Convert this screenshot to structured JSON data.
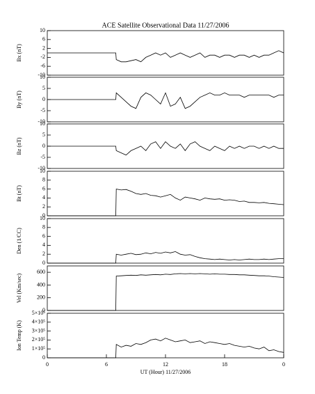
{
  "chart_data": [
    {
      "type": "line",
      "title": "ACE Satellite Observational Data   11/27/2006",
      "ylabel": "Bx (nT)",
      "color": "#000000",
      "x": [
        0,
        6.95,
        7,
        7.5,
        8,
        8.5,
        9,
        9.5,
        10,
        10.5,
        11,
        11.5,
        12,
        12.5,
        13,
        13.5,
        14,
        14.5,
        15,
        15.5,
        16,
        16.5,
        17,
        17.5,
        18,
        18.5,
        19,
        19.5,
        20,
        20.5,
        21,
        21.5,
        22,
        22.5,
        23,
        23.5,
        24
      ],
      "values": [
        0,
        0,
        -3,
        -4,
        -4,
        -3.5,
        -3,
        -4,
        -2,
        -1,
        0,
        -1,
        0,
        -2,
        -1,
        0,
        -1,
        -2,
        -1,
        0,
        -2,
        -1,
        -1,
        -2,
        -1,
        -1,
        -2,
        -1,
        -1,
        -2,
        -1,
        -2,
        -1,
        -1,
        0,
        1,
        0
      ],
      "xlim": [
        0,
        24
      ],
      "ylim": [
        -10,
        10
      ],
      "yticks": [
        -10,
        -6,
        -2,
        2,
        6,
        10
      ]
    },
    {
      "type": "line",
      "ylabel": "By (nT)",
      "color": "#000000",
      "x": [
        0,
        6.95,
        7,
        7.5,
        8,
        8.5,
        9,
        9.5,
        10,
        10.5,
        11,
        11.5,
        12,
        12.5,
        13,
        13.5,
        14,
        14.5,
        15,
        15.5,
        16,
        16.5,
        17,
        17.5,
        18,
        18.5,
        19,
        19.5,
        20,
        20.5,
        21,
        21.5,
        22,
        22.5,
        23,
        23.5,
        24
      ],
      "values": [
        0,
        0,
        3,
        1,
        -1,
        -3,
        -4,
        1,
        3,
        2,
        0,
        -2,
        3,
        -3,
        -2,
        1,
        -4,
        -3,
        -1,
        1,
        2,
        3,
        2,
        2,
        3,
        2,
        2,
        2,
        1,
        2,
        2,
        2,
        2,
        2,
        1,
        2,
        2
      ],
      "xlim": [
        0,
        24
      ],
      "ylim": [
        -10,
        10
      ],
      "yticks": [
        -10,
        -5,
        0,
        5,
        10
      ]
    },
    {
      "type": "line",
      "ylabel": "Bz (nT)",
      "color": "#000000",
      "x": [
        0,
        6.95,
        7,
        7.5,
        8,
        8.5,
        9,
        9.5,
        10,
        10.5,
        11,
        11.5,
        12,
        12.5,
        13,
        13.5,
        14,
        14.5,
        15,
        15.5,
        16,
        16.5,
        17,
        17.5,
        18,
        18.5,
        19,
        19.5,
        20,
        20.5,
        21,
        21.5,
        22,
        22.5,
        23,
        23.5,
        24
      ],
      "values": [
        0,
        0,
        -2,
        -3,
        -4,
        -2,
        -1,
        0,
        -2,
        1,
        2,
        -1,
        2,
        0,
        -1,
        1,
        -2,
        1,
        2,
        0,
        -1,
        -2,
        0,
        -1,
        -2,
        0,
        -1,
        0,
        -1,
        0,
        0,
        -1,
        0,
        -1,
        0,
        -1,
        -1
      ],
      "xlim": [
        0,
        24
      ],
      "ylim": [
        -10,
        10
      ],
      "yticks": [
        -10,
        -5,
        0,
        5,
        10
      ]
    },
    {
      "type": "line",
      "ylabel": "Bt (nT)",
      "color": "#000000",
      "x": [
        0,
        6.95,
        7,
        7.5,
        8,
        8.5,
        9,
        9.5,
        10,
        10.5,
        11,
        11.5,
        12,
        12.5,
        13,
        13.5,
        14,
        14.5,
        15,
        15.5,
        16,
        16.5,
        17,
        17.5,
        18,
        18.5,
        19,
        19.5,
        20,
        20.5,
        21,
        21.5,
        22,
        22.5,
        23,
        23.5,
        24
      ],
      "values": [
        0,
        0,
        6,
        5.8,
        5.9,
        5.5,
        5,
        4.8,
        5,
        4.6,
        4.5,
        4.2,
        4.5,
        4.8,
        4,
        3.5,
        4.2,
        4,
        3.8,
        3.5,
        4,
        3.8,
        3.7,
        3.8,
        3.5,
        3.6,
        3.5,
        3.2,
        3.3,
        3,
        3,
        2.9,
        3,
        2.8,
        2.7,
        2.6,
        2.5
      ],
      "xlim": [
        0,
        24
      ],
      "ylim": [
        0,
        10
      ],
      "yticks": [
        0,
        2,
        4,
        6,
        8,
        10
      ]
    },
    {
      "type": "line",
      "ylabel": "Den (1/CC)",
      "color": "#000000",
      "x": [
        0,
        6.95,
        7,
        7.5,
        8,
        8.5,
        9,
        9.5,
        10,
        10.5,
        11,
        11.5,
        12,
        12.5,
        13,
        13.5,
        14,
        14.5,
        15,
        15.5,
        16,
        16.5,
        17,
        17.5,
        18,
        18.5,
        19,
        19.5,
        20,
        20.5,
        21,
        21.5,
        22,
        22.5,
        23,
        23.5,
        24
      ],
      "values": [
        0,
        0,
        2,
        1.8,
        2,
        2.2,
        1.9,
        2,
        2.3,
        2.1,
        2.4,
        2.2,
        2.5,
        2.3,
        2.6,
        2.0,
        1.8,
        1.9,
        1.5,
        1.2,
        1,
        0.9,
        0.8,
        0.9,
        0.8,
        0.7,
        0.8,
        0.7,
        0.8,
        0.9,
        0.8,
        0.8,
        0.9,
        0.8,
        0.9,
        1,
        1
      ],
      "xlim": [
        0,
        24
      ],
      "ylim": [
        0,
        10
      ],
      "yticks": [
        0,
        2,
        4,
        6,
        8,
        10
      ]
    },
    {
      "type": "line",
      "ylabel": "Vel (Km/sec)",
      "color": "#000000",
      "x": [
        0,
        6.95,
        7,
        7.5,
        8,
        8.5,
        9,
        9.5,
        10,
        10.5,
        11,
        11.5,
        12,
        12.5,
        13,
        13.5,
        14,
        14.5,
        15,
        15.5,
        16,
        16.5,
        17,
        17.5,
        18,
        18.5,
        19,
        19.5,
        20,
        20.5,
        21,
        21.5,
        22,
        22.5,
        23,
        23.5,
        24
      ],
      "values": [
        0,
        0,
        540,
        545,
        550,
        555,
        550,
        560,
        555,
        560,
        565,
        560,
        570,
        565,
        575,
        580,
        575,
        580,
        575,
        580,
        575,
        570,
        575,
        570,
        570,
        565,
        565,
        560,
        560,
        555,
        550,
        545,
        545,
        540,
        530,
        525,
        520
      ],
      "xlim": [
        0,
        24
      ],
      "ylim": [
        0,
        700
      ],
      "yticks": [
        0,
        200,
        400,
        600
      ]
    },
    {
      "type": "line",
      "ylabel": "Ion Temp (K)",
      "xlabel": "UT (Hour)   11/27/2006",
      "color": "#000000",
      "x": [
        0,
        6.95,
        7,
        7.5,
        8,
        8.5,
        9,
        9.5,
        10,
        10.5,
        11,
        11.5,
        12,
        12.5,
        13,
        13.5,
        14,
        14.5,
        15,
        15.5,
        16,
        16.5,
        17,
        17.5,
        18,
        18.5,
        19,
        19.5,
        20,
        20.5,
        21,
        21.5,
        22,
        22.5,
        23,
        23.5,
        24
      ],
      "values": [
        0,
        0,
        150000,
        120000,
        140000,
        130000,
        160000,
        150000,
        170000,
        200000,
        210000,
        190000,
        220000,
        200000,
        180000,
        190000,
        200000,
        170000,
        180000,
        190000,
        160000,
        180000,
        170000,
        160000,
        150000,
        160000,
        140000,
        130000,
        120000,
        130000,
        110000,
        100000,
        120000,
        80000,
        90000,
        70000,
        60000
      ],
      "xlim": [
        0,
        24
      ],
      "ylim": [
        0,
        500000
      ],
      "yticks": [
        0,
        {
          "value": 100000,
          "label": "1×10⁵"
        },
        {
          "value": 200000,
          "label": "2×10⁵"
        },
        {
          "value": 300000,
          "label": "3×10⁵"
        },
        {
          "value": 400000,
          "label": "4×10⁵"
        },
        {
          "value": 500000,
          "label": "5×10⁵"
        }
      ],
      "xticks": [
        0,
        6,
        12,
        18,
        {
          "value": 24,
          "label": "0"
        }
      ]
    }
  ]
}
